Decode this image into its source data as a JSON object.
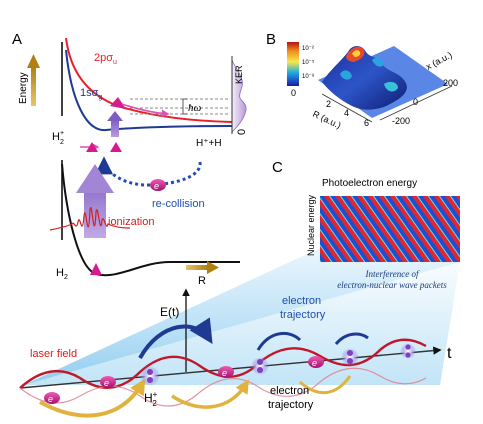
{
  "panels": {
    "a": "A",
    "b": "B",
    "c": "C"
  },
  "panel_a": {
    "energy_axis": "Energy",
    "state_upper": "2pσ",
    "state_upper_sub": "u",
    "state_lower": "1sσ",
    "state_lower_sub": "g",
    "photon_energy": "ħω",
    "ker_axis": "KER",
    "ker_zero": "0",
    "ion_label": "H",
    "ion_sup": "2",
    "ion_charge": "+",
    "dissociation_products": "H⁺+H",
    "recollision": "re-collision",
    "electron": "e",
    "ionization": "ionization",
    "neutral_label": "H",
    "neutral_sub": "2",
    "r_axis": "R"
  },
  "panel_b": {
    "colorbar_top": "10⁻²",
    "colorbar_mid": "10⁻⁵",
    "colorbar_low": "10⁻⁸",
    "colorbar_zero": "0",
    "r_axis": "R (a.u.)",
    "r_ticks": [
      "2",
      "4",
      "6"
    ],
    "x_axis": "x (a.u.)",
    "x_ticks": [
      "200",
      "0",
      "-200"
    ]
  },
  "panel_c": {
    "photoelectron_energy": "Photoelectron energy",
    "nuclear_energy": "Nuclear energy",
    "interference_line1": "Interference of",
    "interference_line2": "electron-nuclear wave packets",
    "field_axis": "E(t)",
    "time_axis": "t",
    "laser_field": "laser field",
    "electron_trajectory_top_1": "electron",
    "electron_trajectory_top_2": "trajectory",
    "electron_trajectory_bottom_1": "electron",
    "electron_trajectory_bottom_2": "trajectory",
    "molecule": "H",
    "molecule_sub": "2",
    "molecule_charge": "+",
    "electron": "e"
  },
  "colors": {
    "upper_curve": "#e8202a",
    "lower_curve": "#1f3a93",
    "ground_curve": "#111111",
    "magenta": "#d81b8c",
    "purple": "#8b6fc4",
    "arrow_gold": "#d9a521",
    "blue_text": "#1f4fb0",
    "red_text": "#d42020"
  }
}
